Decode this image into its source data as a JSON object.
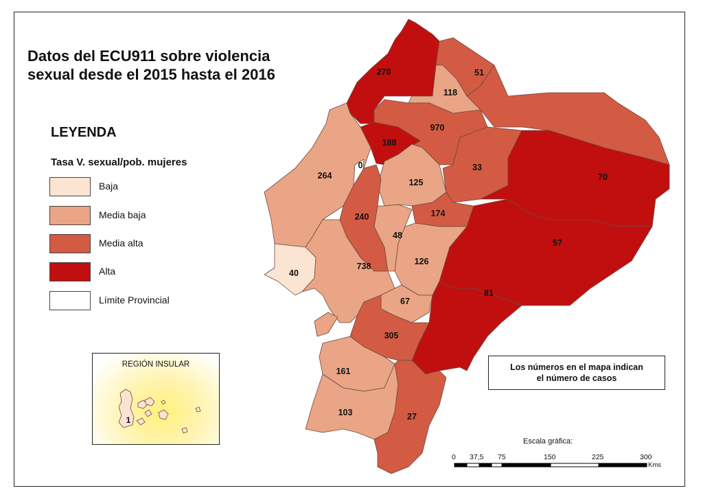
{
  "title": "Datos del ECU911 sobre violencia sexual desde el 2015 hasta el 2016",
  "legend": {
    "heading": "LEYENDA",
    "subtitle": "Tasa V. sexual/pob. mujeres",
    "items": [
      {
        "label": "Baja",
        "color": "#fce4d2"
      },
      {
        "label": "Media baja",
        "color": "#e9a586"
      },
      {
        "label": "Media alta",
        "color": "#d35b43"
      },
      {
        "label": "Alta",
        "color": "#c10f0f"
      },
      {
        "label": "Límite Provincial",
        "color": "#ffffff"
      }
    ]
  },
  "note": {
    "line1": "Los números en el mapa indican",
    "line2": "el número de casos"
  },
  "scale": {
    "title": "Escala gráfica:",
    "ticks": [
      "0",
      "37,5",
      "75",
      "150",
      "225",
      "300"
    ],
    "unit": "Kms"
  },
  "inset": {
    "title": "REGIÓN INSULAR",
    "value": "1"
  },
  "provinces": [
    {
      "value": "270",
      "class": "Alta"
    },
    {
      "value": "51",
      "class": "Media alta"
    },
    {
      "value": "118",
      "class": "Media baja"
    },
    {
      "value": "970",
      "class": "Media alta"
    },
    {
      "value": "188",
      "class": "Alta"
    },
    {
      "value": "0",
      "class": "Baja"
    },
    {
      "value": "264",
      "class": "Media baja"
    },
    {
      "value": "125",
      "class": "Media baja"
    },
    {
      "value": "33",
      "class": "Media alta"
    },
    {
      "value": "70",
      "class": "Alta"
    },
    {
      "value": "174",
      "class": "Media alta"
    },
    {
      "value": "240",
      "class": "Media alta"
    },
    {
      "value": "48",
      "class": "Media baja"
    },
    {
      "value": "57",
      "class": "Alta"
    },
    {
      "value": "738",
      "class": "Media baja"
    },
    {
      "value": "126",
      "class": "Media baja"
    },
    {
      "value": "40",
      "class": "Baja"
    },
    {
      "value": "81",
      "class": "Alta"
    },
    {
      "value": "67",
      "class": "Media baja"
    },
    {
      "value": "305",
      "class": "Media alta"
    },
    {
      "value": "161",
      "class": "Media baja"
    },
    {
      "value": "103",
      "class": "Media baja"
    },
    {
      "value": "27",
      "class": "Media alta"
    }
  ]
}
